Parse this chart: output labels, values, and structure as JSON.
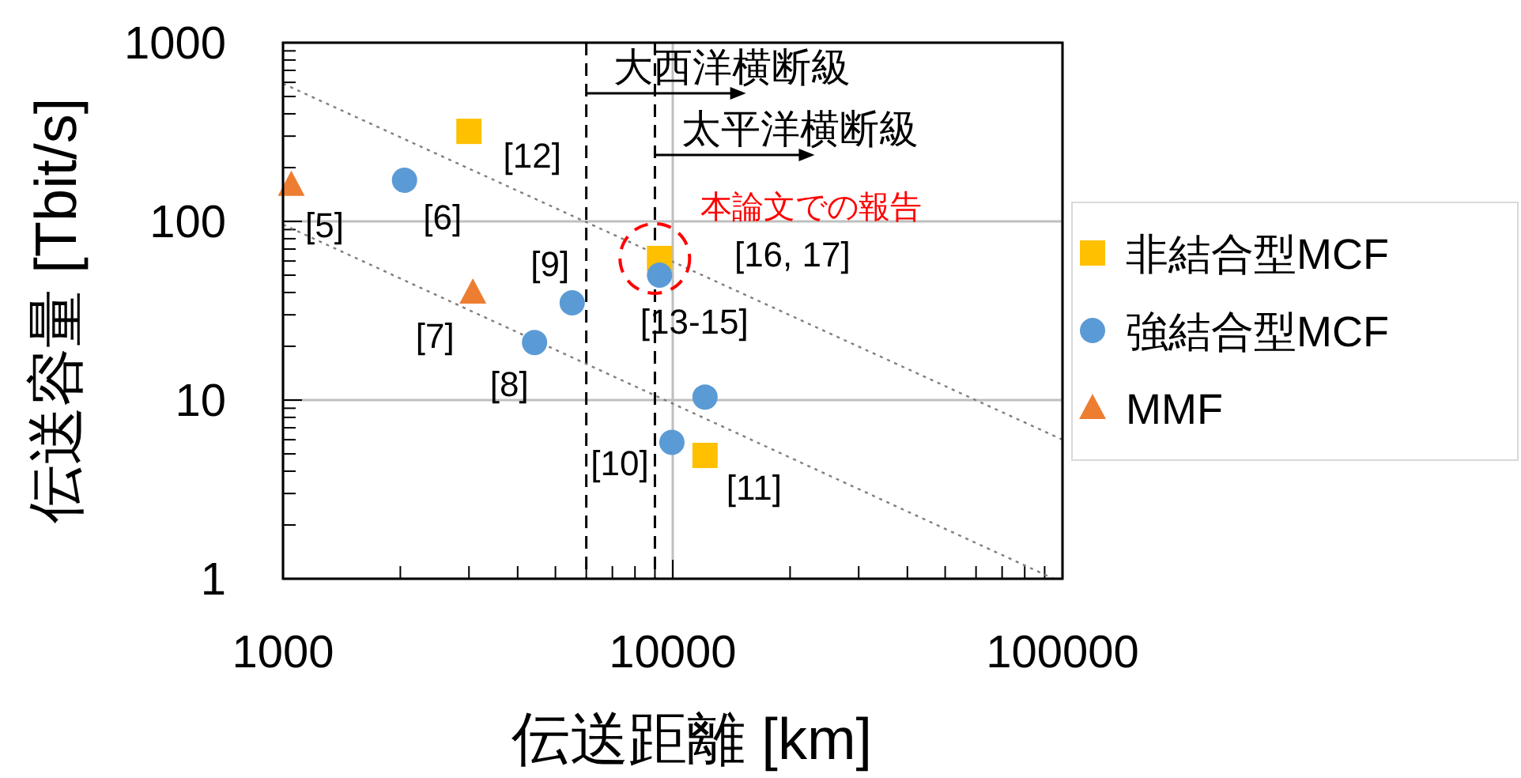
{
  "chart_data": {
    "type": "scatter",
    "xlabel": "伝送距離 [km]",
    "ylabel": "伝送容量 [Tbit/s]",
    "log": "xy",
    "xlim": [
      1000,
      100000
    ],
    "xticks": [
      1000,
      10000,
      100000
    ],
    "ylim": [
      1,
      1000
    ],
    "yticks": [
      1,
      10,
      100,
      1000
    ],
    "grid": true,
    "legend": "right",
    "series": [
      {
        "name": "非結合型MCF",
        "marker": "square",
        "color": "#ffc000",
        "x": [
          3000,
          9250,
          12100
        ],
        "values": [
          319,
          62,
          4.9
        ]
      },
      {
        "name": "強結合型MCF",
        "marker": "circle",
        "color": "#5b9bd5",
        "x": [
          2050,
          5520,
          4420,
          9250,
          12100,
          9950
        ],
        "values": [
          170,
          35,
          21,
          50,
          10.4,
          5.8
        ]
      },
      {
        "name": "MMF",
        "marker": "triangle",
        "color": "#ed7d31",
        "x": [
          1050,
          3070
        ],
        "values": [
          160,
          40
        ]
      },
      {
        "type": "line",
        "marker": "none",
        "line_style": "dotted",
        "color": "#7f7f7f",
        "x": [
          1000,
          100000
        ],
        "values": [
          590,
          6
        ]
      },
      {
        "type": "line",
        "marker": "none",
        "line_style": "dotted",
        "color": "#7f7f7f",
        "x": [
          1000,
          95000
        ],
        "values": [
          96,
          1
        ]
      }
    ],
    "ref_lines": [
      {
        "axis": "x",
        "value": 6000,
        "label": "大西洋横断級",
        "color": "#000000",
        "line_style": "dashed"
      },
      {
        "axis": "x",
        "value": 9000,
        "label": "太平洋横断級",
        "color": "#000000",
        "line_style": "dashed"
      }
    ],
    "annotations": [
      {
        "text": "[12]",
        "x": 3000,
        "y": 319
      },
      {
        "text": "[16, 17]",
        "x": 9250,
        "y": 62
      },
      {
        "text": "[11]",
        "x": 12100,
        "y": 4.9
      },
      {
        "text": "[6]",
        "x": 2050,
        "y": 170
      },
      {
        "text": "[9]",
        "x": 5520,
        "y": 35
      },
      {
        "text": "[8]",
        "x": 4420,
        "y": 21
      },
      {
        "text": "[13-15]",
        "x": 9250,
        "y": 50
      },
      {
        "text": "[10]",
        "x": 9950,
        "y": 5.8
      },
      {
        "text": "[5]",
        "x": 1050,
        "y": 160
      },
      {
        "text": "[7]",
        "x": 3070,
        "y": 40
      },
      {
        "text": "本論文での報告",
        "x": 9250,
        "y": 62
      }
    ]
  }
}
